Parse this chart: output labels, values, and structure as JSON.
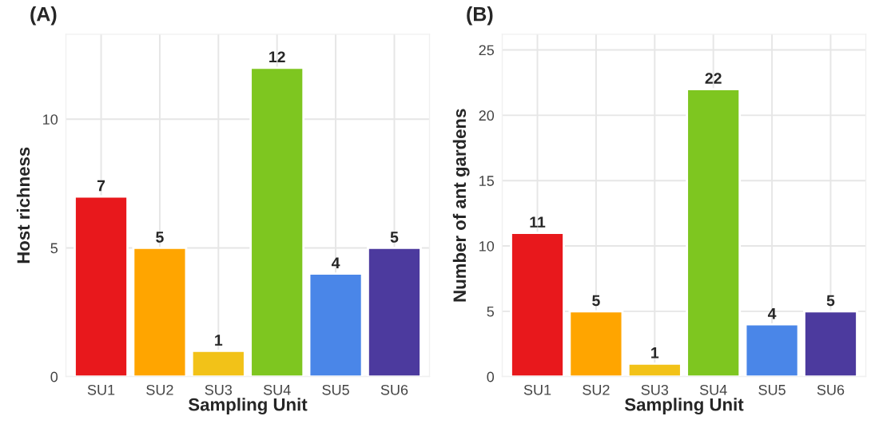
{
  "chart_data": [
    {
      "type": "bar",
      "title": "(A)",
      "xlabel": "Sampling Unit",
      "ylabel": "Host richness",
      "categories": [
        "SU1",
        "SU2",
        "SU3",
        "SU4",
        "SU5",
        "SU6"
      ],
      "values": [
        7,
        5,
        1,
        12,
        4,
        5
      ],
      "colors": [
        "#e8181c",
        "#ffa500",
        "#f2c218",
        "#7ec620",
        "#4a86e8",
        "#4c3a9e"
      ],
      "ylim": [
        0,
        13.3
      ],
      "yticks": [
        0,
        5,
        10
      ],
      "grid": true,
      "data_labels": true
    },
    {
      "type": "bar",
      "title": "(B)",
      "xlabel": "Sampling Unit",
      "ylabel": "Number of ant gardens",
      "categories": [
        "SU1",
        "SU2",
        "SU3",
        "SU4",
        "SU5",
        "SU6"
      ],
      "values": [
        11,
        5,
        1,
        22,
        4,
        5
      ],
      "colors": [
        "#e8181c",
        "#ffa500",
        "#f2c218",
        "#7ec620",
        "#4a86e8",
        "#4c3a9e"
      ],
      "ylim": [
        0,
        26.2
      ],
      "yticks": [
        0,
        5,
        10,
        15,
        20,
        25
      ],
      "grid": true,
      "data_labels": true
    }
  ]
}
